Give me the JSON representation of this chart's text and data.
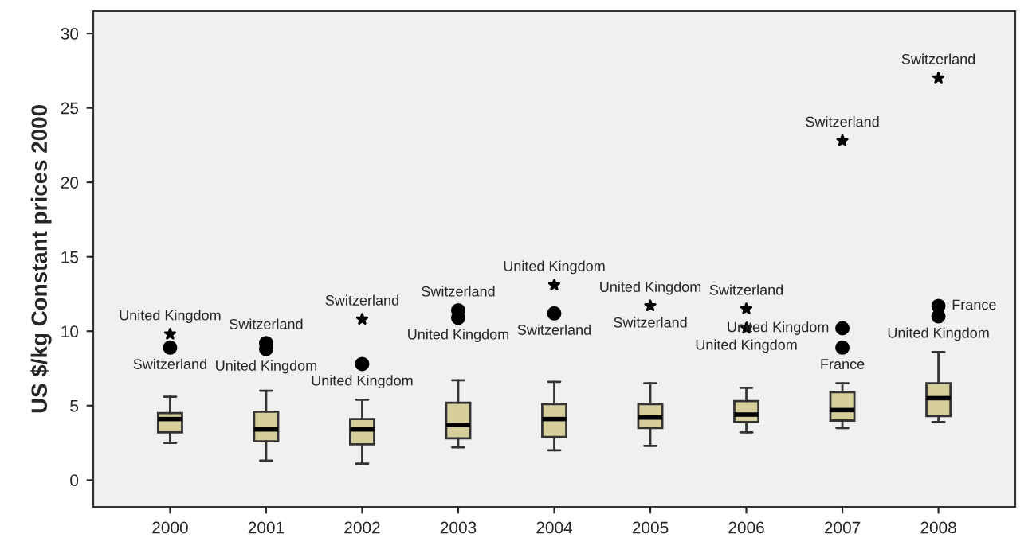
{
  "chart_data": {
    "type": "box",
    "ylabel": "US $/kg Constant prices 2000",
    "categories": [
      "2000",
      "2001",
      "2002",
      "2003",
      "2004",
      "2005",
      "2006",
      "2007",
      "2008"
    ],
    "boxes": [
      {
        "low": 2.5,
        "q1": 3.2,
        "median": 4.1,
        "q3": 4.5,
        "high": 5.6
      },
      {
        "low": 1.3,
        "q1": 2.6,
        "median": 3.4,
        "q3": 4.6,
        "high": 6.0
      },
      {
        "low": 1.1,
        "q1": 2.4,
        "median": 3.4,
        "q3": 4.1,
        "high": 5.4
      },
      {
        "low": 2.2,
        "q1": 2.8,
        "median": 3.7,
        "q3": 5.2,
        "high": 6.7
      },
      {
        "low": 2.0,
        "q1": 2.9,
        "median": 4.1,
        "q3": 5.1,
        "high": 6.6
      },
      {
        "low": 2.3,
        "q1": 3.5,
        "median": 4.2,
        "q3": 5.1,
        "high": 6.5
      },
      {
        "low": 3.2,
        "q1": 3.9,
        "median": 4.4,
        "q3": 5.3,
        "high": 6.2
      },
      {
        "low": 3.5,
        "q1": 4.0,
        "median": 4.7,
        "q3": 5.9,
        "high": 6.5
      },
      {
        "low": 3.9,
        "q1": 4.3,
        "median": 5.5,
        "q3": 6.5,
        "high": 8.6
      }
    ],
    "color": "#d6cf9c",
    "series": [
      {
        "type": "scatter",
        "marker": "circle",
        "color": "#000000",
        "values": [
          8.9,
          9.2,
          7.8,
          11.4,
          11.2,
          null,
          null,
          10.2,
          11.7
        ]
      },
      {
        "type": "scatter",
        "marker": "circle",
        "color": "#000000",
        "values": [
          null,
          8.8,
          null,
          10.9,
          null,
          null,
          null,
          8.9,
          11.0
        ]
      },
      {
        "type": "scatter",
        "marker": "star",
        "color": "#000000",
        "values": [
          9.8,
          null,
          10.8,
          null,
          13.1,
          11.7,
          11.5,
          22.8,
          27.0
        ]
      },
      {
        "type": "scatter",
        "marker": "star",
        "color": "#000000",
        "values": [
          null,
          null,
          null,
          null,
          null,
          null,
          10.2,
          null,
          null
        ]
      }
    ],
    "annotations": [
      {
        "text": "United Kingdom",
        "x": "2000",
        "y": 9.8
      },
      {
        "text": "Switzerland",
        "x": "2000",
        "y": 8.9
      },
      {
        "text": "Switzerland",
        "x": "2001",
        "y": 9.2
      },
      {
        "text": "United Kingdom",
        "x": "2001",
        "y": 8.8
      },
      {
        "text": "Switzerland",
        "x": "2002",
        "y": 10.8
      },
      {
        "text": "United Kingdom",
        "x": "2002",
        "y": 7.8
      },
      {
        "text": "Switzerland",
        "x": "2003",
        "y": 11.4
      },
      {
        "text": "United Kingdom",
        "x": "2003",
        "y": 10.9
      },
      {
        "text": "United Kingdom",
        "x": "2004",
        "y": 13.1
      },
      {
        "text": "Switzerland",
        "x": "2004",
        "y": 11.2
      },
      {
        "text": "United Kingdom",
        "x": "2005",
        "y": 11.7
      },
      {
        "text": "Switzerland",
        "x": "2005",
        "y": 11.7
      },
      {
        "text": "Switzerland",
        "x": "2006",
        "y": 11.5
      },
      {
        "text": "United Kingdom",
        "x": "2006",
        "y": 10.2
      },
      {
        "text": "Switzerland",
        "x": "2007",
        "y": 22.8
      },
      {
        "text": "United Kingdom",
        "x": "2007",
        "y": 10.2
      },
      {
        "text": "France",
        "x": "2007",
        "y": 8.9
      },
      {
        "text": "Switzerland",
        "x": "2008",
        "y": 27.0
      },
      {
        "text": "France",
        "x": "2008",
        "y": 11.7
      },
      {
        "text": "United Kingdom",
        "x": "2008",
        "y": 11.0
      }
    ],
    "ylim": [
      -1.8,
      31.5
    ],
    "yticks": [
      0,
      5,
      10,
      15,
      20,
      25,
      30
    ],
    "grid": false,
    "legend": false
  }
}
